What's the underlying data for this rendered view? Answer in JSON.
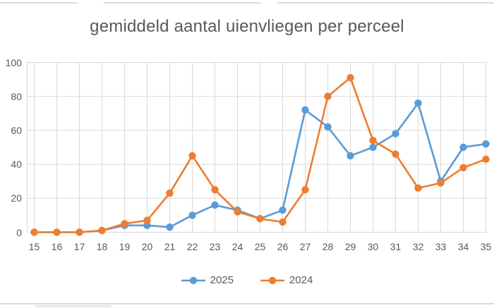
{
  "page": {
    "background": "#ffffff",
    "top_gridline_color": "#dcdcdc",
    "bottom_gridline_color": "#d9d9d9"
  },
  "chart_data": {
    "type": "line",
    "title": "gemiddeld aantal uienvliegen per perceel",
    "categories": [
      15,
      16,
      17,
      18,
      19,
      20,
      21,
      22,
      23,
      24,
      25,
      26,
      27,
      28,
      29,
      30,
      31,
      32,
      33,
      34,
      35
    ],
    "series": [
      {
        "name": "2025",
        "color": "#5B9BD5",
        "values": [
          0,
          0,
          0,
          1,
          4,
          4,
          3,
          10,
          16,
          13,
          8,
          13,
          72,
          62,
          45,
          50,
          58,
          76,
          30,
          50,
          52
        ]
      },
      {
        "name": "2024",
        "color": "#ED7D31",
        "values": [
          0,
          0,
          0,
          1,
          5,
          7,
          23,
          45,
          25,
          12,
          8,
          6,
          25,
          80,
          91,
          54,
          46,
          26,
          29,
          38,
          43
        ]
      }
    ],
    "xlabel": "",
    "ylabel": "",
    "ylim": [
      0,
      100
    ],
    "yticks": [
      0,
      20,
      40,
      60,
      80,
      100
    ],
    "grid": true,
    "grid_color": "#D9D9D9",
    "text_color": "#595959",
    "legend_position": "bottom",
    "marker": "circle",
    "legend_labels": [
      "2025",
      "2024"
    ]
  }
}
